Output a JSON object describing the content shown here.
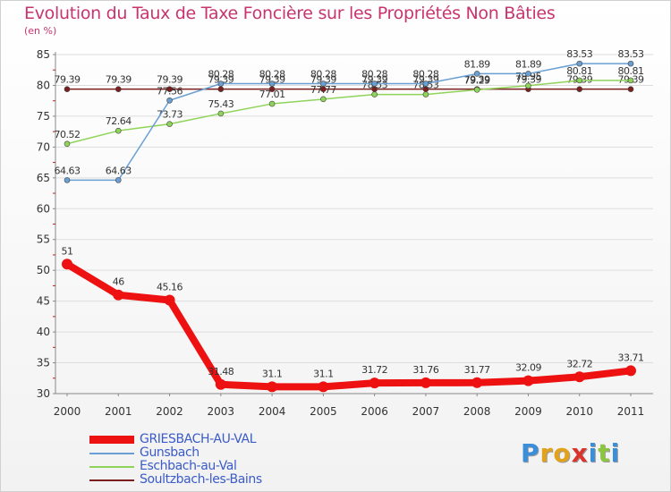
{
  "chart_data": {
    "type": "line",
    "title": "Evolution du Taux de Taxe Foncière sur les Propriétés Non Bâties",
    "ylabel": "(en %)",
    "xlabel": "",
    "ylim": [
      30,
      85
    ],
    "yticks": [
      30,
      35,
      40,
      45,
      50,
      55,
      60,
      65,
      70,
      75,
      80,
      85
    ],
    "x": [
      "2000",
      "2001",
      "2002",
      "2003",
      "2004",
      "2005",
      "2006",
      "2007",
      "2008",
      "2009",
      "2010",
      "2011"
    ],
    "series": [
      {
        "name": "Soultzbach-les-Bains",
        "color": "#7a1e1e",
        "values": [
          79.39,
          79.39,
          79.39,
          79.39,
          79.39,
          79.39,
          79.39,
          79.39,
          79.39,
          79.39,
          79.39,
          79.39
        ],
        "labels": [
          "79.39",
          "79.39",
          "79.39",
          "79.39",
          "79.39",
          "79.39",
          "79.39",
          "79.39",
          "79.39",
          "79.39",
          "79.39",
          "79.39"
        ]
      },
      {
        "name": "Eschbach-au-Val",
        "color": "#8fd45a",
        "values": [
          70.52,
          72.64,
          73.73,
          75.43,
          77.01,
          77.77,
          78.53,
          78.53,
          79.29,
          79.95,
          80.81,
          80.81
        ],
        "labels": [
          "70.52",
          "72.64",
          "73.73",
          "75.43",
          "77.01",
          "77.77",
          "78.53",
          "78.53",
          "79.29",
          "79.95",
          "80.81",
          "80.81"
        ]
      },
      {
        "name": "Gunsbach",
        "color": "#6a9fd4",
        "values": [
          64.63,
          64.63,
          77.56,
          80.28,
          80.28,
          80.28,
          80.28,
          80.28,
          81.89,
          81.89,
          83.53,
          83.53
        ],
        "labels": [
          "64.63",
          "64.63",
          "77.56",
          "80.28",
          "80.28",
          "80.28",
          "80.28",
          "80.28",
          "81.89",
          "81.89",
          "83.53",
          "83.53"
        ]
      },
      {
        "name": "GRIESBACH-AU-VAL",
        "color": "#ee1111",
        "values": [
          51,
          46,
          45.16,
          31.48,
          31.1,
          31.1,
          31.72,
          31.76,
          31.77,
          32.09,
          32.72,
          33.71
        ],
        "labels": [
          "51",
          "46",
          "45.16",
          "31.48",
          "31.1",
          "31.1",
          "31.72",
          "31.76",
          "31.77",
          "32.09",
          "32.72",
          "33.71"
        ]
      }
    ]
  },
  "legend": [
    {
      "name": "GRIESBACH-AU-VAL",
      "color": "#ee1111"
    },
    {
      "name": "Gunsbach",
      "color": "#6a9fd4"
    },
    {
      "name": "Eschbach-au-Val",
      "color": "#8fd45a"
    },
    {
      "name": "Soultzbach-les-Bains",
      "color": "#7a1e1e"
    }
  ],
  "logo": {
    "text": "Proxiti",
    "letters": [
      "P",
      "r",
      "o",
      "x",
      "i",
      "t",
      "i"
    ]
  }
}
